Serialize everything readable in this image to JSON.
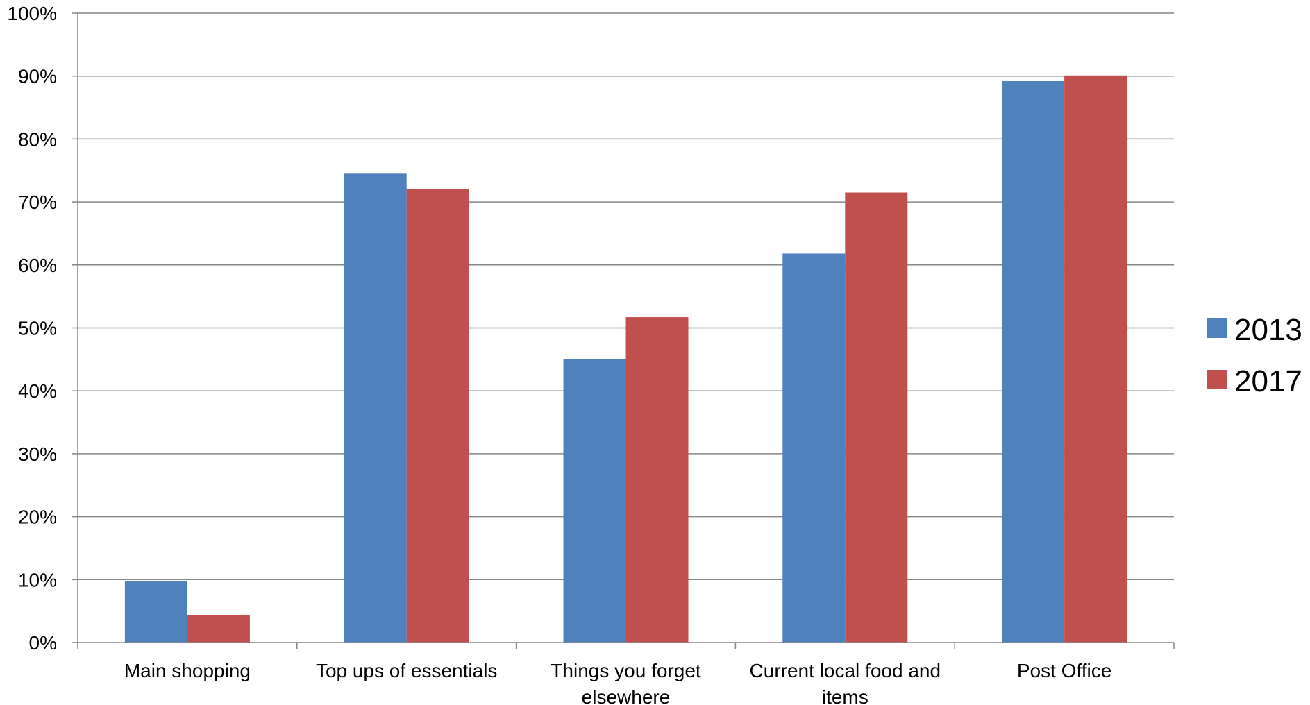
{
  "chart_data": {
    "type": "bar",
    "title": "",
    "xlabel": "",
    "ylabel": "",
    "categories": [
      [
        "Main shopping"
      ],
      [
        "Top ups of essentials"
      ],
      [
        "Things you forget",
        "elsewhere"
      ],
      [
        "Current local food and",
        "items"
      ],
      [
        "Post Office"
      ]
    ],
    "series": [
      {
        "name": "2013",
        "color": "#4F81BD",
        "values": [
          9.8,
          74.5,
          45.0,
          61.8,
          89.2
        ]
      },
      {
        "name": "2017",
        "color": "#C0504D",
        "values": [
          4.4,
          72.0,
          51.7,
          71.5,
          90.1
        ]
      }
    ],
    "ylim": [
      0,
      100
    ],
    "yticks": [
      0,
      10,
      20,
      30,
      40,
      50,
      60,
      70,
      80,
      90,
      100
    ],
    "ytick_labels": [
      "0%",
      "10%",
      "20%",
      "30%",
      "40%",
      "50%",
      "60%",
      "70%",
      "80%",
      "90%",
      "100%"
    ],
    "grid": true,
    "legend_position": "right"
  }
}
